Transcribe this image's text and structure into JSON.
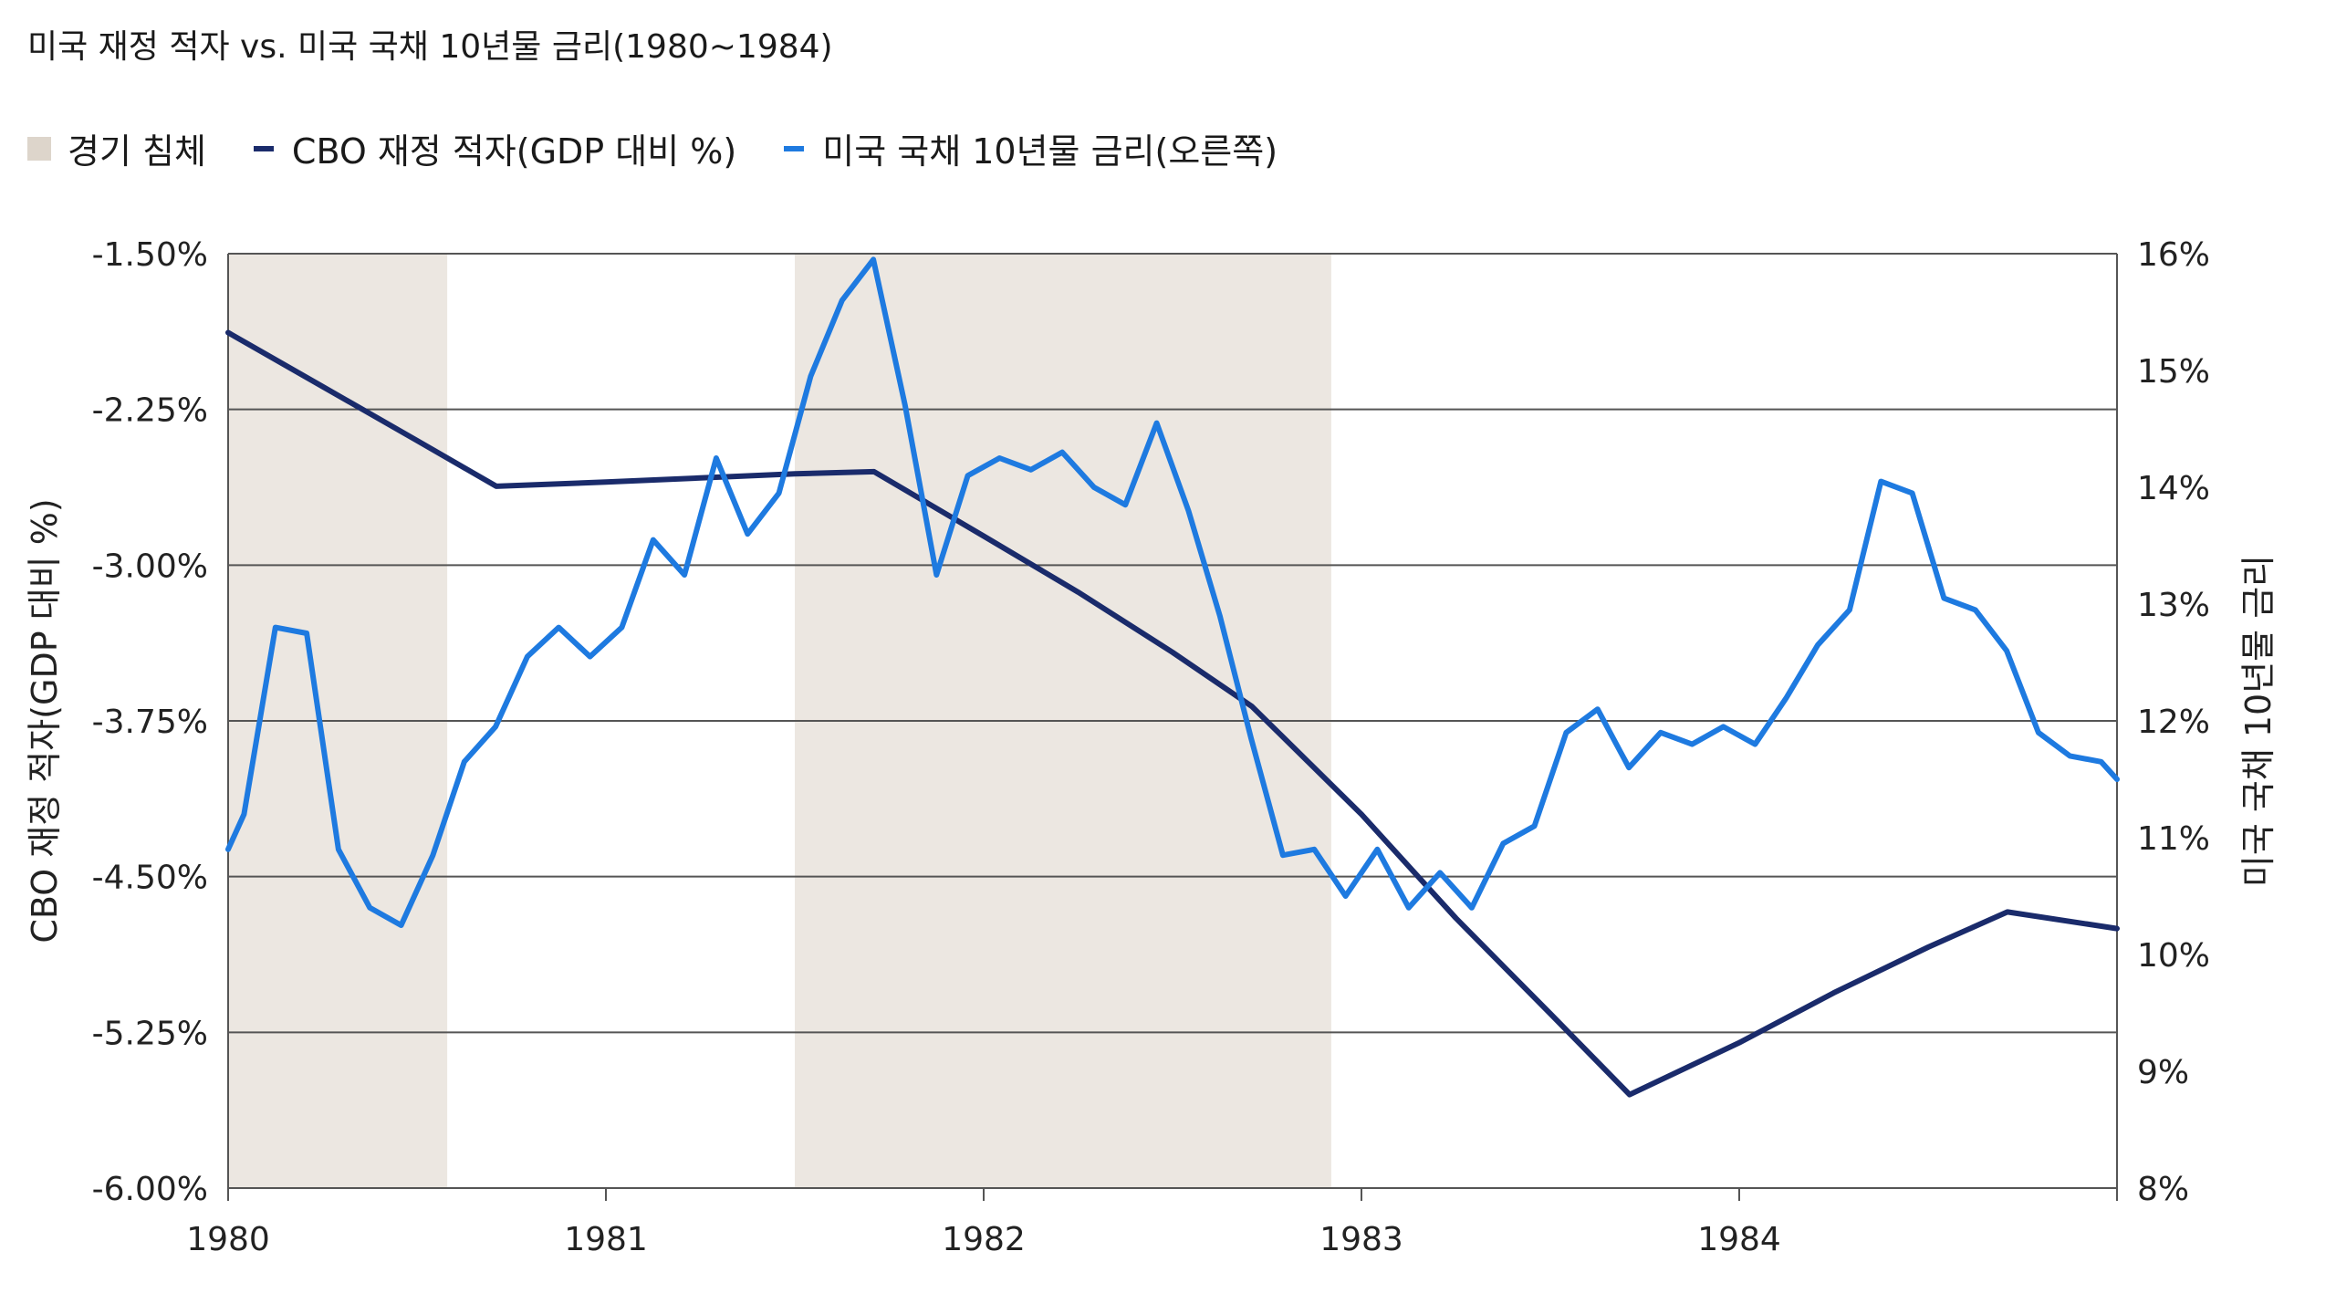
{
  "title": "미국 재정 적자 vs. 미국 국채 10년물 금리(1980~1984)",
  "legend": {
    "recession": "경기 침체",
    "deficit": "CBO 재정 적자(GDP 대비 %)",
    "yield": "미국 국채 10년물 금리(오른쪽)"
  },
  "colors": {
    "recession": "#ece7e1",
    "deficit": "#1a2b6b",
    "yield": "#1e7ae0",
    "grid": "#555555"
  },
  "chart_data": {
    "type": "line",
    "title": "미국 재정 적자 vs. 미국 국채 10년물 금리(1980~1984)",
    "x_range": [
      1980.0,
      1985.0
    ],
    "x_ticks": [
      1980,
      1981,
      1982,
      1983,
      1984
    ],
    "x_tick_labels": [
      "1980",
      "1981",
      "1982",
      "1983",
      "1984"
    ],
    "ylabel_left": "CBO 재정 적자(GDP 대비 %)",
    "ylabel_right": "미국 국채 10년물 금리",
    "ylim_left": [
      -6.0,
      -1.5
    ],
    "ylim_right": [
      8,
      16
    ],
    "left_ticks": [
      -1.5,
      -2.25,
      -3.0,
      -3.75,
      -4.5,
      -5.25,
      -6.0
    ],
    "left_tick_labels": [
      "-1.50%",
      "-2.25%",
      "-3.00%",
      "-3.75%",
      "-4.50%",
      "-5.25%",
      "-6.00%"
    ],
    "right_ticks": [
      16,
      15,
      14,
      13,
      12,
      11,
      10,
      9,
      8
    ],
    "right_tick_labels": [
      "16%",
      "15%",
      "14%",
      "13%",
      "12%",
      "11%",
      "10%",
      "9%",
      "8%"
    ],
    "grid": true,
    "recessions": [
      {
        "start": 1980.0,
        "end": 1980.58
      },
      {
        "start": 1981.5,
        "end": 1982.92
      }
    ],
    "series": [
      {
        "name": "CBO 재정 적자(GDP 대비 %)",
        "axis": "left",
        "x": [
          1980.0,
          1980.25,
          1980.5,
          1980.71,
          1981.0,
          1981.25,
          1981.5,
          1981.71,
          1982.0,
          1982.25,
          1982.5,
          1982.71,
          1983.0,
          1983.25,
          1983.5,
          1983.71,
          1984.0,
          1984.25,
          1984.5,
          1984.71,
          1985.0
        ],
        "values": [
          -1.88,
          -2.14,
          -2.4,
          -2.62,
          -2.6,
          -2.58,
          -2.56,
          -2.55,
          -2.86,
          -3.13,
          -3.42,
          -3.68,
          -4.2,
          -4.7,
          -5.16,
          -5.55,
          -5.3,
          -5.06,
          -4.84,
          -4.67,
          -4.75
        ]
      },
      {
        "name": "미국 국채 10년물 금리(오른쪽)",
        "axis": "right",
        "x": [
          1980.0,
          1980.042,
          1980.125,
          1980.208,
          1980.292,
          1980.375,
          1980.458,
          1980.542,
          1980.625,
          1980.708,
          1980.792,
          1980.875,
          1980.958,
          1981.042,
          1981.125,
          1981.208,
          1981.292,
          1981.375,
          1981.458,
          1981.542,
          1981.625,
          1981.708,
          1981.792,
          1981.875,
          1981.958,
          1982.042,
          1982.125,
          1982.208,
          1982.292,
          1982.375,
          1982.458,
          1982.542,
          1982.625,
          1982.708,
          1982.792,
          1982.875,
          1982.958,
          1983.042,
          1983.125,
          1983.208,
          1983.292,
          1983.375,
          1983.458,
          1983.542,
          1983.625,
          1983.708,
          1983.792,
          1983.875,
          1983.958,
          1984.042,
          1984.125,
          1984.208,
          1984.292,
          1984.375,
          1984.458,
          1984.542,
          1984.625,
          1984.708,
          1984.792,
          1984.875,
          1984.958,
          1985.0
        ],
        "values": [
          10.9,
          11.2,
          12.8,
          12.75,
          10.9,
          10.4,
          10.25,
          10.85,
          11.65,
          11.95,
          12.55,
          12.8,
          12.55,
          12.8,
          13.55,
          13.25,
          14.25,
          13.6,
          13.95,
          14.95,
          15.6,
          15.95,
          14.7,
          13.25,
          14.1,
          14.25,
          14.15,
          14.3,
          14.0,
          13.85,
          14.55,
          13.8,
          12.9,
          11.85,
          10.85,
          10.9,
          10.5,
          10.9,
          10.4,
          10.7,
          10.4,
          10.95,
          11.1,
          11.9,
          12.1,
          11.6,
          11.9,
          11.8,
          11.95,
          11.8,
          12.2,
          12.65,
          12.95,
          14.05,
          13.95,
          13.05,
          12.95,
          12.6,
          11.9,
          11.7,
          11.65,
          11.5
        ]
      }
    ]
  }
}
